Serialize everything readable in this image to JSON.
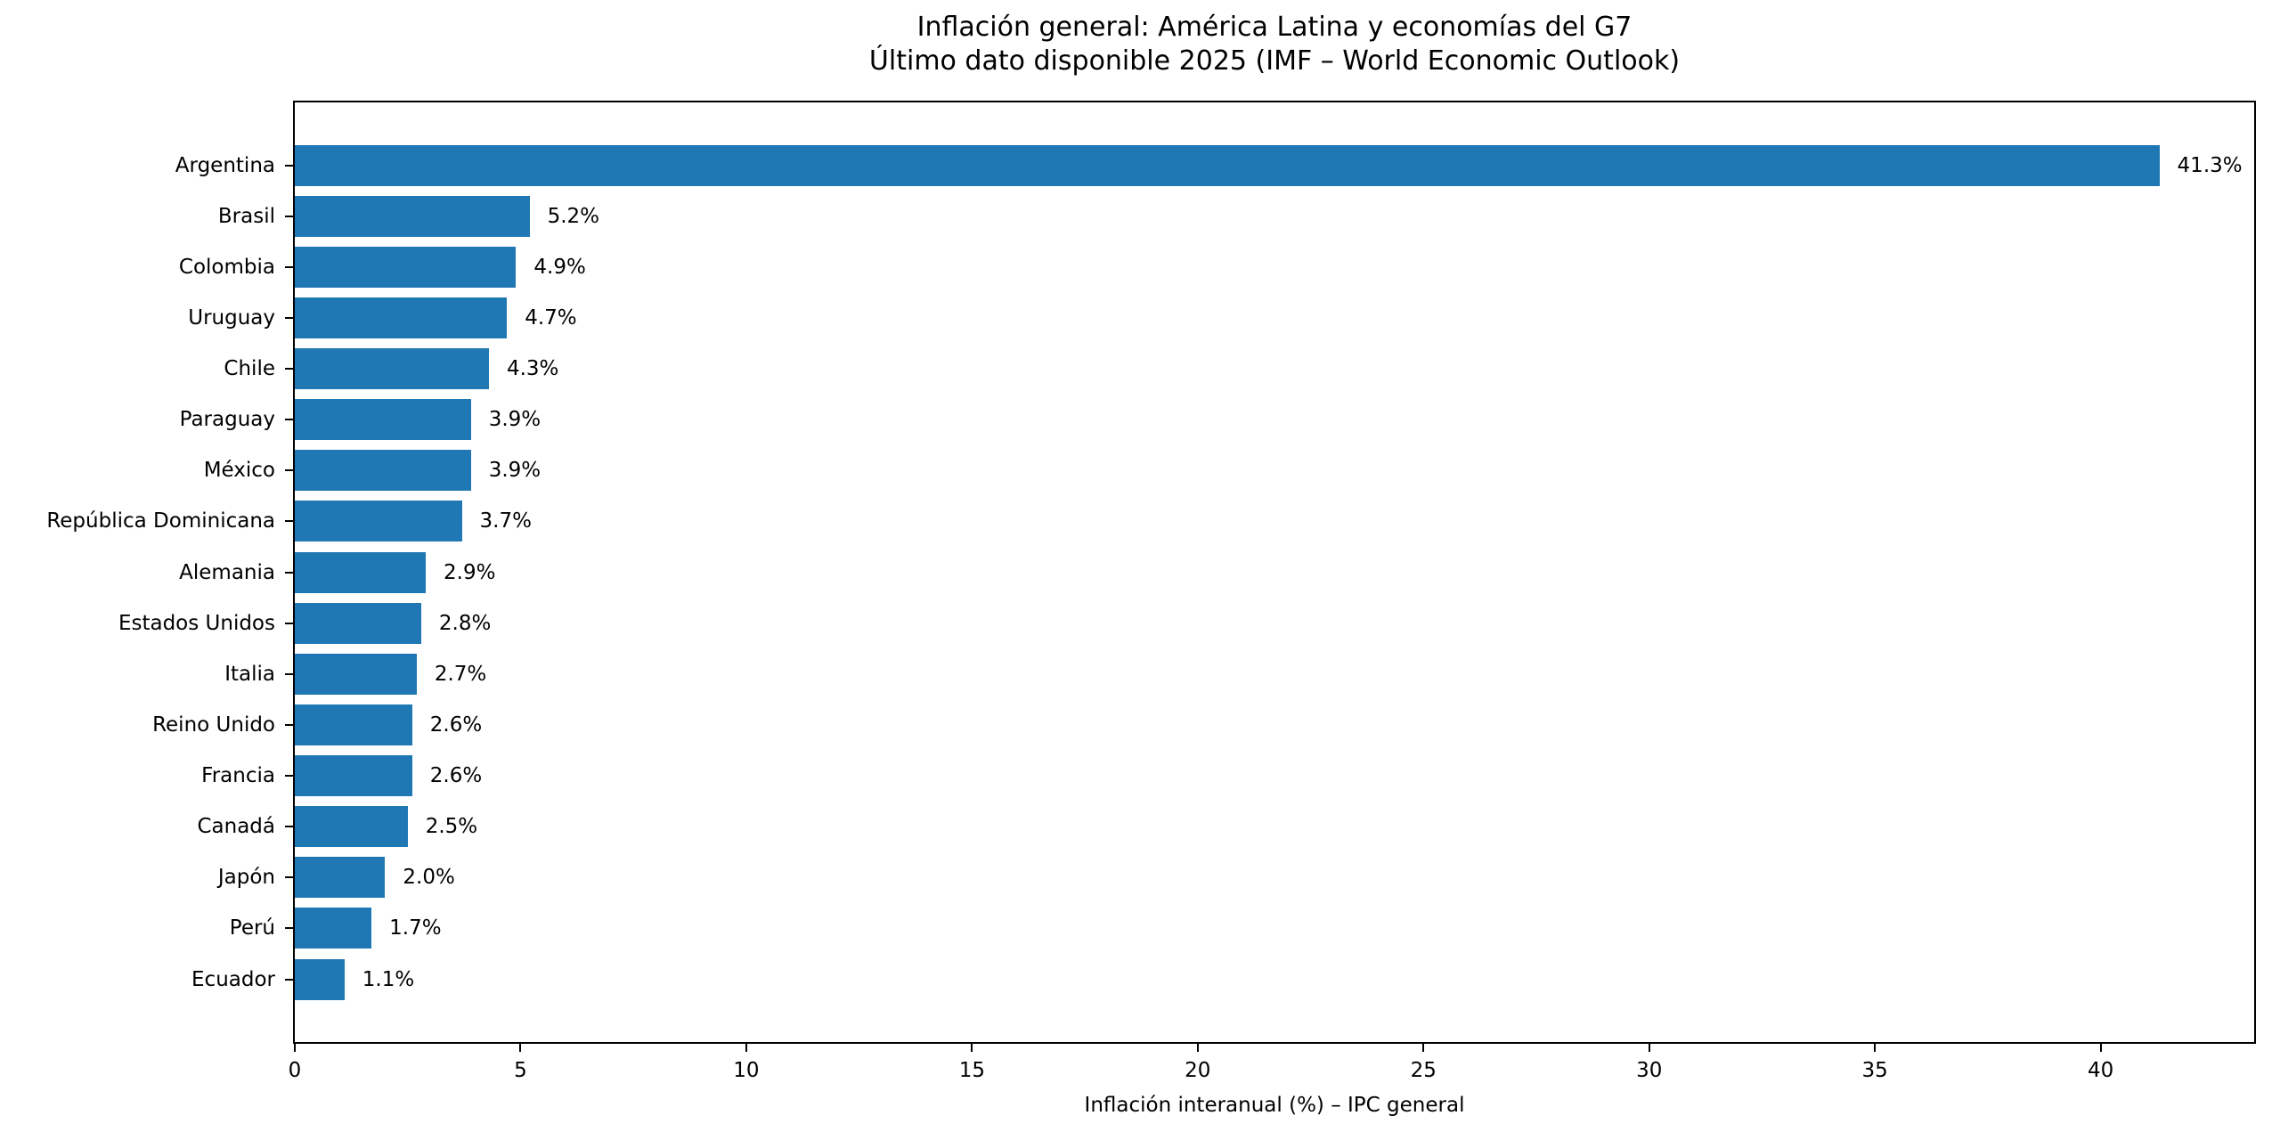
{
  "chart_data": {
    "type": "bar",
    "orientation": "horizontal",
    "title": "Inflación general: América Latina y economías del G7",
    "subtitle": "Último dato disponible 2025 (IMF – World Economic Outlook)",
    "xlabel": "Inflación interanual (%) – IPC general",
    "categories": [
      "Argentina",
      "Brasil",
      "Colombia",
      "Uruguay",
      "Chile",
      "Paraguay",
      "México",
      "República Dominicana",
      "Alemania",
      "Estados Unidos",
      "Italia",
      "Reino Unido",
      "Francia",
      "Canadá",
      "Japón",
      "Perú",
      "Ecuador"
    ],
    "values": [
      41.3,
      5.2,
      4.9,
      4.7,
      4.3,
      3.9,
      3.9,
      3.7,
      2.9,
      2.8,
      2.7,
      2.6,
      2.6,
      2.5,
      2.0,
      1.7,
      1.1
    ],
    "value_labels": [
      "41.3%",
      "5.2%",
      "4.9%",
      "4.7%",
      "4.3%",
      "3.9%",
      "3.9%",
      "3.7%",
      "2.9%",
      "2.8%",
      "2.7%",
      "2.6%",
      "2.6%",
      "2.5%",
      "2.0%",
      "1.7%",
      "1.1%"
    ],
    "xticks": [
      0,
      5,
      10,
      15,
      20,
      25,
      30,
      35,
      40
    ],
    "xlim": [
      0,
      43.4
    ],
    "bar_color": "#1f77b4",
    "grid": false,
    "legend_position": "none"
  }
}
